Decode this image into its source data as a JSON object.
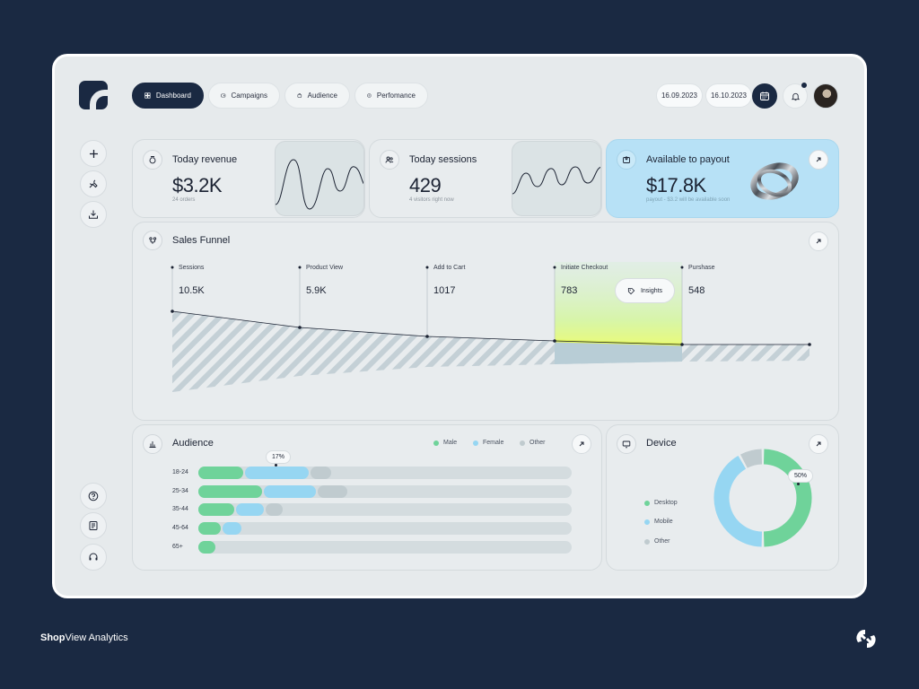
{
  "nav": {
    "tabs": [
      {
        "label": "Dashboard",
        "icon": "grid-icon",
        "active": true
      },
      {
        "label": "Campaigns",
        "icon": "campaign-icon"
      },
      {
        "label": "Audience",
        "icon": "audience-icon"
      },
      {
        "label": "Perfomance",
        "icon": "performance-icon"
      }
    ],
    "date_from": "16.09.2023",
    "date_to": "16.10.2023",
    "notification_count_badge": true
  },
  "sidebar": {
    "top": [
      "plus-icon",
      "tools-icon",
      "download-icon"
    ],
    "bottom": [
      "help-icon",
      "document-icon",
      "headset-icon"
    ]
  },
  "stats": {
    "revenue": {
      "title": "Today revenue",
      "value": "$3.2K",
      "sub": "24 orders"
    },
    "sessions": {
      "title": "Today sessions",
      "value": "429",
      "sub": "4 visitors right now"
    },
    "payout": {
      "title": "Available to payout",
      "value": "$17.8K",
      "sub": "payout - $3.2 will be available soon"
    }
  },
  "funnel": {
    "title": "Sales Funnel",
    "stages": [
      {
        "label": "Sessions",
        "value": "10.5K"
      },
      {
        "label": "Product View",
        "value": "5.9K"
      },
      {
        "label": "Add to Cart",
        "value": "1017"
      },
      {
        "label": "Initiate Checkout",
        "value": "783"
      },
      {
        "label": "Purshase",
        "value": "548"
      }
    ],
    "insights_label": "Insights"
  },
  "audience": {
    "title": "Audience",
    "legend": [
      {
        "label": "Male",
        "color": "#6fd39a"
      },
      {
        "label": "Female",
        "color": "#96d6f2"
      },
      {
        "label": "Other",
        "color": "#c0cbcf"
      }
    ],
    "tooltip": "17%",
    "rows": [
      {
        "age": "18-24",
        "male": 0.12,
        "female": 0.17,
        "other": 0.055
      },
      {
        "age": "25-34",
        "male": 0.17,
        "female": 0.14,
        "other": 0.08
      },
      {
        "age": "35-44",
        "male": 0.095,
        "female": 0.075,
        "other": 0.045
      },
      {
        "age": "45-64",
        "male": 0.06,
        "female": 0.05,
        "other": 0
      },
      {
        "age": "65+",
        "male": 0.045,
        "female": 0,
        "other": 0
      }
    ]
  },
  "device": {
    "title": "Device",
    "legend": [
      {
        "label": "Desktop",
        "color": "#6fd39a"
      },
      {
        "label": "Mobile",
        "color": "#96d6f2"
      },
      {
        "label": "Other",
        "color": "#c0cbcf"
      }
    ],
    "tooltip": "50%",
    "shares": {
      "desktop": 0.5,
      "mobile": 0.42,
      "other": 0.08
    }
  },
  "footer": {
    "brand_bold": "Shop",
    "brand_rest": "View Analytics"
  }
}
